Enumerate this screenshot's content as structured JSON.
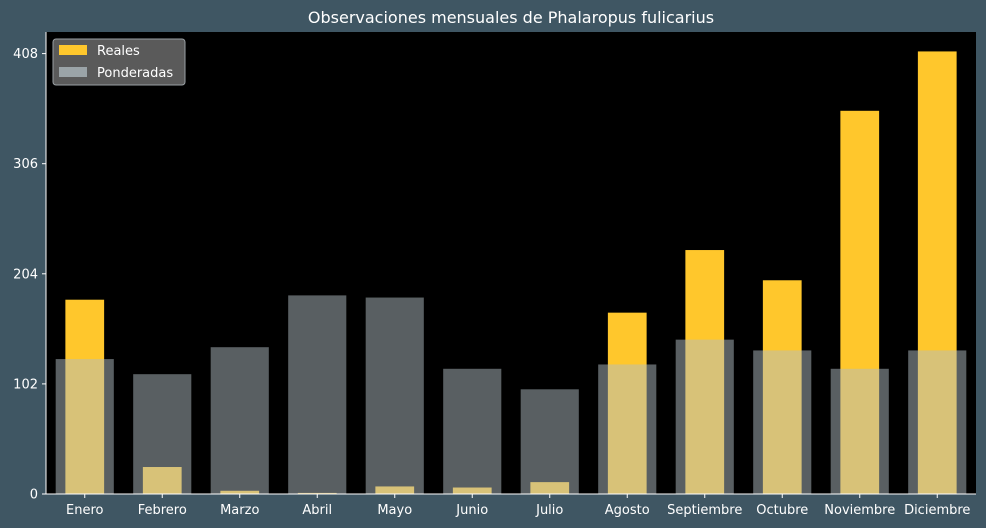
{
  "chart_data": {
    "type": "bar",
    "title": "Observaciones mensuales de Phalaropus fulicarius",
    "xlabel": "",
    "ylabel": "",
    "categories": [
      "Enero",
      "Febrero",
      "Marzo",
      "Abril",
      "Mayo",
      "Junio",
      "Julio",
      "Agosto",
      "Septiembre",
      "Octubre",
      "Noviembre",
      "Diciembre"
    ],
    "series": [
      {
        "name": "Reales",
        "values": [
          180,
          25,
          3,
          1,
          7,
          6,
          11,
          168,
          226,
          198,
          355,
          410
        ],
        "color": "#ffc72c"
      },
      {
        "name": "Ponderadas",
        "values": [
          125,
          111,
          136,
          184,
          182,
          116,
          97,
          120,
          143,
          133,
          116,
          133
        ],
        "color": "#b2bec3",
        "opacity": 0.5
      }
    ],
    "yticks": [
      0,
      102,
      204,
      306,
      408
    ],
    "ylim": [
      0,
      428
    ],
    "grid": false,
    "legend_position": "top-left",
    "colors": {
      "figure_background": "#3f5663",
      "plot_background": "#000000",
      "text": "#ffffff",
      "overlap": "#d4cd8a"
    }
  }
}
